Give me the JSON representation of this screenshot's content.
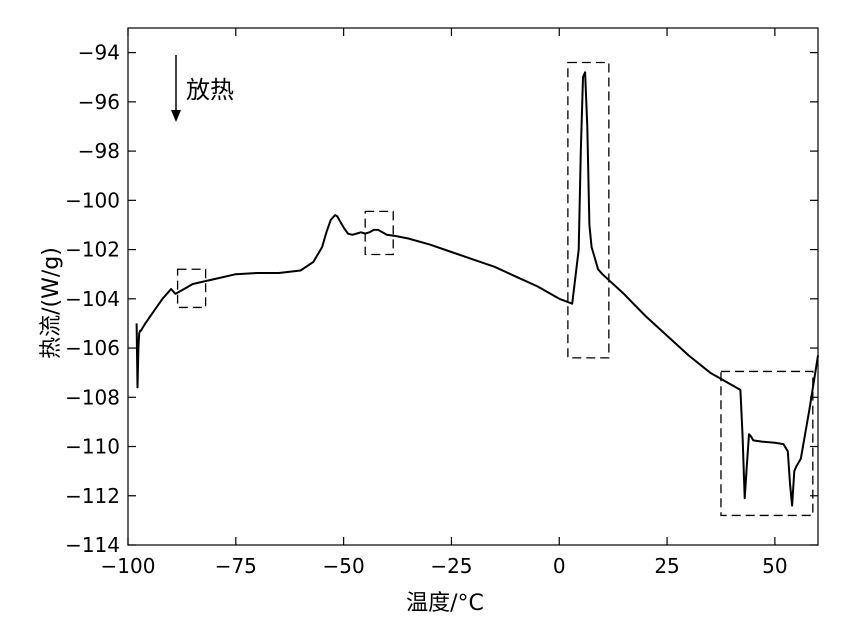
{
  "chart_data": {
    "type": "line",
    "title": "",
    "xlabel": "温度/°C",
    "ylabel": "热流/(W/g)",
    "xlim": [
      -100,
      60
    ],
    "ylim": [
      -114,
      -93
    ],
    "xticks": [
      -100,
      -75,
      -50,
      -25,
      0,
      25,
      50
    ],
    "xtick_labels": [
      "−100",
      "−75",
      "−50",
      "−25",
      "0",
      "25",
      "50"
    ],
    "yticks": [
      -114,
      -112,
      -110,
      -108,
      -106,
      -104,
      -102,
      -100,
      -98,
      -96,
      -94
    ],
    "ytick_labels": [
      "−114",
      "−112",
      "−110",
      "−108",
      "−106",
      "−104",
      "−102",
      "−100",
      "−98",
      "−96",
      "−94"
    ],
    "grid": false,
    "annotation": "放热",
    "series": [
      {
        "x": [
          -98,
          -97.8,
          -97.6,
          -97.4,
          -97.2,
          -97,
          -96,
          -94,
          -92,
          -90,
          -89,
          -87,
          -85,
          -80,
          -75,
          -70,
          -65,
          -60,
          -57,
          -55,
          -54,
          -53,
          -52,
          -51.5,
          -51,
          -50,
          -49,
          -48,
          -47,
          -46,
          -45,
          -44,
          -43,
          -42,
          -41,
          -40,
          -38,
          -35,
          -30,
          -25,
          -20,
          -15,
          -10,
          -5,
          0,
          3,
          4.5,
          5,
          5.5,
          6,
          6.5,
          7,
          7.5,
          8,
          8.5,
          9,
          10,
          15,
          20,
          25,
          30,
          35,
          40,
          42,
          42.5,
          43,
          43.5,
          44,
          44.5,
          45,
          47,
          50,
          52,
          53,
          53.5,
          54,
          54.5,
          55,
          56,
          57,
          58,
          59,
          60
        ],
        "y": [
          -105.0,
          -107.6,
          -106.0,
          -105.4,
          -105.3,
          -105.3,
          -105.0,
          -104.5,
          -104.0,
          -103.6,
          -103.8,
          -103.6,
          -103.4,
          -103.2,
          -103.0,
          -102.95,
          -102.95,
          -102.85,
          -102.5,
          -101.9,
          -101.3,
          -100.8,
          -100.6,
          -100.65,
          -100.8,
          -101.1,
          -101.35,
          -101.4,
          -101.35,
          -101.3,
          -101.35,
          -101.3,
          -101.2,
          -101.2,
          -101.3,
          -101.4,
          -101.45,
          -101.55,
          -101.8,
          -102.1,
          -102.4,
          -102.7,
          -103.1,
          -103.5,
          -104.0,
          -104.2,
          -102.0,
          -98.0,
          -95.0,
          -94.8,
          -97.0,
          -101.0,
          -101.9,
          -102.2,
          -102.5,
          -102.8,
          -103.0,
          -103.8,
          -104.7,
          -105.5,
          -106.3,
          -107.0,
          -107.5,
          -107.7,
          -109.5,
          -112.1,
          -110.8,
          -109.5,
          -109.6,
          -109.75,
          -109.8,
          -109.85,
          -109.9,
          -110.2,
          -111.5,
          -112.4,
          -111.0,
          -110.8,
          -110.5,
          -109.5,
          -108.5,
          -107.4,
          -106.3
        ]
      }
    ],
    "highlight_boxes": [
      {
        "x": [
          -88.5,
          -82
        ],
        "y": [
          -104.35,
          -102.8
        ]
      },
      {
        "x": [
          -45,
          -38.5
        ],
        "y": [
          -102.2,
          -100.45
        ]
      },
      {
        "x": [
          2,
          11.5
        ],
        "y": [
          -106.4,
          -94.4
        ]
      },
      {
        "x": [
          37.5,
          58.8
        ],
        "y": [
          -112.8,
          -106.95
        ]
      }
    ]
  }
}
